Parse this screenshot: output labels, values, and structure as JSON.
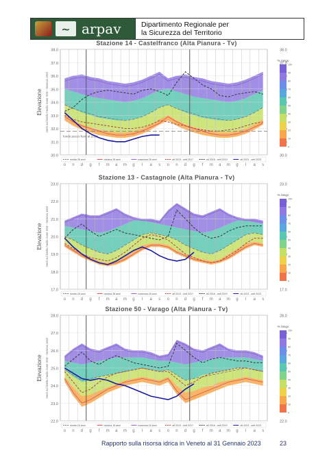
{
  "header": {
    "logo_text": "arpav",
    "department_line1": "Dipartimento Regionale per",
    "department_line2": "la Sicurezza del Territorio"
  },
  "axis_common": {
    "ylabel_main": "Elevazione",
    "ylabel_sub": "metri sul livello medio mare IGM - Genova 1942",
    "months": [
      "o",
      "n",
      "d",
      "g",
      "f",
      "m",
      "a",
      "m",
      "g",
      "l",
      "a",
      "s",
      "o",
      "n",
      "d",
      "g",
      "f",
      "m",
      "a",
      "m",
      "g",
      "l",
      "a",
      "s"
    ],
    "scale_title": "% rango",
    "scale_ticks": [
      "100",
      "90",
      "80",
      "70",
      "60",
      "50",
      "40",
      "30",
      "20",
      "10",
      "0"
    ]
  },
  "chart_data": [
    {
      "type": "area",
      "title": "Stazione 14 - Castelfranco (Alta Pianura - Tv)",
      "ylim": [
        30.0,
        38.0
      ],
      "yticks": [
        "38.0",
        "37.0",
        "36.0",
        "35.0",
        "34.0",
        "33.0",
        "32.0",
        "31.0",
        "30.0"
      ],
      "annotation": "fondo pozzo fuori al 2018",
      "reference_level": 31.8,
      "x_months": 24,
      "band_low": [
        32.6,
        32.2,
        31.9,
        31.7,
        31.5,
        31.4,
        31.3,
        31.3,
        31.4,
        31.6,
        31.9,
        32.3,
        32.6,
        32.2,
        31.9,
        31.7,
        31.5,
        31.4,
        31.3,
        31.3,
        31.4,
        31.6,
        31.9,
        32.3
      ],
      "band_p10": [
        33.0,
        32.6,
        32.3,
        32.1,
        31.9,
        31.8,
        31.7,
        31.7,
        31.8,
        32.0,
        32.3,
        32.7,
        33.0,
        32.6,
        32.3,
        32.1,
        31.9,
        31.8,
        31.7,
        31.7,
        31.8,
        32.0,
        32.3,
        32.7
      ],
      "band_p50": [
        33.8,
        33.5,
        33.2,
        33.0,
        32.8,
        32.7,
        32.6,
        32.6,
        32.7,
        32.9,
        33.2,
        33.6,
        33.8,
        33.5,
        33.2,
        33.0,
        32.8,
        32.7,
        32.6,
        32.6,
        32.7,
        32.9,
        33.2,
        33.6
      ],
      "band_p90": [
        35.0,
        34.8,
        34.6,
        34.4,
        34.3,
        34.2,
        34.1,
        34.0,
        34.1,
        34.3,
        34.6,
        34.9,
        35.0,
        34.8,
        34.6,
        34.4,
        34.3,
        34.2,
        34.1,
        34.0,
        34.1,
        34.3,
        34.6,
        34.9
      ],
      "band_high": [
        35.8,
        36.0,
        36.1,
        35.9,
        35.8,
        35.6,
        35.5,
        35.4,
        35.5,
        35.7,
        36.0,
        36.3,
        35.8,
        36.0,
        36.1,
        35.9,
        35.8,
        35.6,
        35.5,
        35.4,
        35.5,
        35.7,
        36.0,
        36.3
      ],
      "series": [
        {
          "name": "media 28 anni",
          "color": "#777777",
          "dash": "4,2",
          "values": [
            33.8,
            33.5,
            33.3,
            33.1,
            32.9,
            32.8,
            32.7,
            32.6,
            32.7,
            32.9,
            33.2,
            33.6,
            33.8,
            33.5,
            33.3,
            33.1,
            32.9,
            32.8,
            32.7,
            32.6,
            32.7,
            32.9,
            33.2,
            33.6
          ]
        },
        {
          "name": "minima 28 anni",
          "color": "#e05050",
          "dash": "",
          "values": [
            32.9,
            32.5,
            32.2,
            32.0,
            31.8,
            31.6,
            31.5,
            31.5,
            31.6,
            31.8,
            32.1,
            32.4,
            32.9,
            32.5,
            32.2,
            32.0,
            31.8,
            31.6,
            31.5,
            31.5,
            31.6,
            31.8,
            32.1,
            32.4
          ]
        },
        {
          "name": "massima 28 anni",
          "color": "#9060d0",
          "dash": "",
          "values": [
            35.6,
            35.8,
            35.9,
            35.7,
            35.6,
            35.4,
            35.3,
            35.2,
            35.3,
            35.5,
            35.8,
            36.1,
            35.6,
            35.8,
            35.9,
            35.7,
            35.6,
            35.4,
            35.3,
            35.2,
            35.3,
            35.5,
            35.8,
            36.1
          ]
        },
        {
          "name": "ott 2013 - sett 2017",
          "color": "#b04040",
          "dash": "3,2",
          "values": [
            33.0,
            32.7,
            32.5,
            32.4,
            32.3,
            32.2,
            32.1,
            32.0,
            32.0,
            32.1,
            32.3,
            32.6,
            32.5,
            32.3,
            32.2,
            32.0,
            31.9,
            31.8,
            31.8,
            31.9,
            32.0,
            32.2,
            32.4,
            32.5
          ]
        },
        {
          "name": "ott 2018 - sett 2019",
          "color": "#333333",
          "dash": "3,2",
          "values": [
            33.3,
            33.6,
            34.2,
            34.6,
            34.8,
            34.9,
            34.8,
            34.7,
            34.6,
            34.9,
            35.0,
            34.8,
            34.5,
            35.5,
            36.3,
            35.8,
            35.3,
            35.0,
            34.5,
            34.4,
            34.6,
            34.7,
            34.8,
            34.6
          ]
        },
        {
          "name": "ott 2021 - sett 2023",
          "color": "#1a1aa0",
          "dash": "",
          "values": [
            33.2,
            32.6,
            32.0,
            31.6,
            31.3,
            31.1,
            31.0,
            31.0,
            31.2,
            31.4,
            31.5,
            31.5
          ]
        }
      ]
    },
    {
      "type": "area",
      "title": "Stazione 13 - Castagnole (Alta Pianura - Tv)",
      "ylim": [
        17.0,
        23.0
      ],
      "yticks": [
        "23.0",
        "22.0",
        "21.0",
        "20.0",
        "19.0",
        "18.0",
        "17.0"
      ],
      "x_months": 24,
      "band_low": [
        19.4,
        19.1,
        18.8,
        18.6,
        18.4,
        18.3,
        18.4,
        18.6,
        18.9,
        19.2,
        19.4,
        19.4,
        19.3,
        19.0,
        18.8,
        18.6,
        18.5,
        18.4,
        18.5,
        18.7,
        19.0,
        19.3,
        19.5,
        19.4
      ],
      "band_p10": [
        19.6,
        19.3,
        19.0,
        18.8,
        18.6,
        18.5,
        18.6,
        18.9,
        19.2,
        19.5,
        19.6,
        19.6,
        19.5,
        19.2,
        19.0,
        18.8,
        18.7,
        18.6,
        18.7,
        19.0,
        19.3,
        19.6,
        19.7,
        19.6
      ],
      "band_p50": [
        20.0,
        19.8,
        19.5,
        19.3,
        19.1,
        19.0,
        19.2,
        19.5,
        19.8,
        20.1,
        20.2,
        20.1,
        20.0,
        19.8,
        19.5,
        19.3,
        19.1,
        19.0,
        19.2,
        19.5,
        19.8,
        20.1,
        20.2,
        20.1
      ],
      "band_p90": [
        20.6,
        20.5,
        20.4,
        20.3,
        20.2,
        20.3,
        20.5,
        20.7,
        20.9,
        20.9,
        20.8,
        20.7,
        20.6,
        20.5,
        20.4,
        20.3,
        20.2,
        20.3,
        20.5,
        20.7,
        20.9,
        20.9,
        20.8,
        20.7
      ],
      "band_high": [
        20.9,
        21.1,
        21.3,
        21.2,
        21.2,
        21.4,
        21.6,
        21.3,
        21.1,
        21.0,
        21.0,
        20.9,
        21.5,
        21.9,
        21.6,
        21.3,
        21.2,
        21.4,
        21.6,
        21.3,
        21.1,
        21.0,
        21.0,
        20.9
      ],
      "series": [
        {
          "name": "media 28 anni",
          "color": "#777777",
          "dash": "4,2",
          "values": [
            20.0,
            19.8,
            19.5,
            19.3,
            19.1,
            19.0,
            19.2,
            19.5,
            19.8,
            20.1,
            20.2,
            20.1,
            20.0,
            19.8,
            19.5,
            19.3,
            19.1,
            19.0,
            19.2,
            19.5,
            19.8,
            20.1,
            20.2,
            20.1
          ]
        },
        {
          "name": "minima 28 anni",
          "color": "#e05050",
          "dash": "",
          "values": [
            19.5,
            19.2,
            18.9,
            18.7,
            18.5,
            18.4,
            18.5,
            18.7,
            19.0,
            19.3,
            19.5,
            19.5,
            19.4,
            19.1,
            18.9,
            18.7,
            18.6,
            18.5,
            18.6,
            18.8,
            19.1,
            19.4,
            19.6,
            19.5
          ]
        },
        {
          "name": "massima 28 anni",
          "color": "#9060d0",
          "dash": "",
          "values": [
            20.8,
            21.0,
            21.2,
            21.1,
            21.1,
            21.3,
            21.5,
            21.2,
            21.0,
            20.9,
            20.9,
            20.8,
            21.4,
            21.8,
            21.5,
            21.2,
            21.1,
            21.3,
            21.5,
            21.2,
            21.0,
            20.9,
            20.9,
            20.8
          ]
        },
        {
          "name": "ott 2013 - sett 2017",
          "color": "#b04040",
          "dash": "3,2",
          "values": [
            19.6,
            19.3,
            19.0,
            18.8,
            18.7,
            18.6,
            18.8,
            19.1,
            19.5,
            19.9,
            20.1,
            20.0,
            19.8,
            19.4,
            19.0,
            18.8,
            18.6,
            18.5,
            18.6,
            18.9,
            19.2,
            19.6,
            19.9,
            19.9
          ]
        },
        {
          "name": "ott 2018 - sett 2019",
          "color": "#333333",
          "dash": "3,2",
          "values": [
            19.9,
            20.4,
            20.7,
            20.3,
            20.0,
            20.2,
            20.4,
            20.2,
            20.1,
            20.0,
            19.9,
            19.8,
            20.0,
            21.5,
            21.0,
            20.5,
            20.1,
            19.9,
            20.0,
            20.3,
            20.5,
            20.6,
            20.6,
            20.6
          ]
        },
        {
          "name": "ott 2021 - sett 2023",
          "color": "#1a1aa0",
          "dash": "",
          "values": [
            19.9,
            19.4,
            19.0,
            18.7,
            18.5,
            18.4,
            18.6,
            18.9,
            19.2,
            19.4,
            19.2,
            18.9,
            18.7,
            18.6,
            18.7,
            19.1
          ]
        }
      ]
    },
    {
      "type": "area",
      "title": "Stazione 50 - Varago (Alta Pianura - Tv)",
      "ylim": [
        22.0,
        28.0
      ],
      "yticks": [
        "28.0",
        "27.0",
        "26.0",
        "25.0",
        "24.0",
        "23.0",
        "22.0"
      ],
      "x_months": 24,
      "band_low": [
        24.2,
        23.4,
        22.8,
        23.0,
        23.3,
        23.6,
        23.8,
        24.0,
        24.1,
        24.2,
        24.1,
        24.0,
        24.2,
        23.5,
        23.0,
        23.2,
        23.4,
        23.6,
        23.8,
        24.0,
        24.1,
        24.2,
        24.1,
        24.0
      ],
      "band_p10": [
        24.5,
        23.9,
        23.4,
        23.5,
        23.7,
        23.9,
        24.1,
        24.3,
        24.4,
        24.5,
        24.4,
        24.3,
        24.5,
        24.0,
        23.6,
        23.7,
        23.9,
        24.0,
        24.2,
        24.3,
        24.4,
        24.5,
        24.4,
        24.3
      ],
      "band_p50": [
        24.9,
        24.5,
        24.2,
        24.3,
        24.5,
        24.6,
        24.7,
        24.8,
        24.9,
        25.0,
        24.9,
        24.8,
        24.9,
        24.6,
        24.3,
        24.4,
        24.6,
        24.7,
        24.8,
        24.9,
        25.0,
        25.0,
        24.9,
        24.8
      ],
      "band_p90": [
        25.4,
        25.3,
        25.2,
        25.3,
        25.4,
        25.5,
        25.6,
        25.6,
        25.6,
        25.6,
        25.5,
        25.4,
        25.4,
        25.3,
        25.2,
        25.3,
        25.4,
        25.5,
        25.6,
        25.6,
        25.6,
        25.6,
        25.5,
        25.4
      ],
      "band_high": [
        25.7,
        26.1,
        26.4,
        26.1,
        26.0,
        26.2,
        26.4,
        26.1,
        26.0,
        26.0,
        25.9,
        25.7,
        25.8,
        26.6,
        26.4,
        26.1,
        26.0,
        26.2,
        26.4,
        26.1,
        26.0,
        26.0,
        25.9,
        25.7
      ],
      "series": [
        {
          "name": "media 15 anni",
          "color": "#777777",
          "dash": "4,2",
          "values": [
            24.9,
            24.6,
            24.3,
            24.4,
            24.5,
            24.6,
            24.7,
            24.8,
            24.9,
            25.0,
            24.9,
            24.8,
            24.9,
            24.6,
            24.3,
            24.4,
            24.5,
            24.6,
            24.7,
            24.8,
            24.9,
            25.0,
            24.9,
            24.8
          ]
        },
        {
          "name": "minima 15 anni",
          "color": "#e05050",
          "dash": "",
          "values": [
            24.4,
            23.6,
            23.0,
            23.2,
            23.5,
            23.8,
            24.0,
            24.2,
            24.3,
            24.4,
            24.3,
            24.2,
            24.4,
            23.7,
            23.2,
            23.4,
            23.6,
            23.8,
            24.0,
            24.2,
            24.3,
            24.4,
            24.3,
            24.2
          ]
        },
        {
          "name": "massima 15 anni",
          "color": "#9060d0",
          "dash": "",
          "values": [
            25.6,
            26.0,
            26.3,
            26.0,
            25.9,
            26.1,
            26.3,
            26.0,
            25.9,
            25.9,
            25.8,
            25.6,
            25.7,
            26.5,
            26.3,
            26.0,
            25.9,
            26.1,
            26.3,
            26.0,
            25.9,
            25.9,
            25.8,
            25.6
          ]
        },
        {
          "name": "ott 2013 - sett 2017",
          "color": "#b04040",
          "dash": "3,2",
          "values": [
            24.8,
            24.2,
            23.6,
            23.8,
            24.2,
            24.5,
            24.7,
            24.8,
            24.9,
            25.0,
            24.9,
            24.8,
            24.8,
            24.4,
            24.0,
            24.2,
            24.5,
            24.7,
            24.8,
            24.9,
            25.0,
            25.0,
            24.9,
            24.8
          ]
        },
        {
          "name": "ott 2018 - sett 2019",
          "color": "#333333",
          "dash": "3,2",
          "values": [
            25.1,
            25.5,
            25.9,
            25.4,
            25.2,
            25.5,
            25.7,
            25.5,
            25.3,
            25.2,
            25.1,
            25.0,
            25.1,
            26.4,
            26.0,
            25.6,
            25.3,
            25.5,
            25.6,
            25.5,
            25.4,
            25.4,
            25.3,
            25.3
          ]
        },
        {
          "name": "ott 2021 - sett 2023",
          "color": "#1a1aa0",
          "dash": "",
          "values": [
            25.0,
            24.7,
            24.4,
            24.3,
            24.4,
            24.3,
            24.1,
            24.0,
            23.8,
            23.6,
            23.4,
            23.3,
            23.2,
            23.4,
            23.8,
            24.1
          ]
        }
      ]
    }
  ],
  "footer": {
    "text": "Rapporto sulla risorsa idrica in Veneto al 31 Gennaio 2023",
    "page": "23"
  }
}
